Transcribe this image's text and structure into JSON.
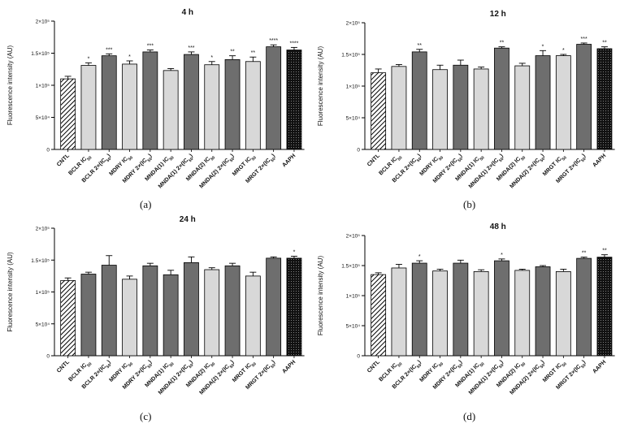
{
  "figure": {
    "panel_letters": [
      "(a)",
      "(b)",
      "(c)",
      "(d)"
    ]
  },
  "colors": {
    "control_pattern": "#000000",
    "light_bar": "#d8d8d8",
    "dark_bar": "#6e6e6e",
    "aaph_bar": "#111111",
    "axis": "#000000"
  },
  "chart_data": [
    {
      "type": "bar",
      "title": "4 h",
      "ylabel": "Fluorescence intensity (AU)",
      "xlabel": "",
      "ylim": [
        0,
        200000
      ],
      "yticks": [
        "0",
        "5×10⁴",
        "1×10⁵",
        "1.5×10⁵",
        "2×10⁵"
      ],
      "categories": [
        "CNTL",
        "BCLR IC50",
        "BCLR 2×(IC50)",
        "MDRY IC50",
        "MDRY 2×(IC50)",
        "MNDA(1) IC50",
        "MNDA(1) 2×(IC50)",
        "MNDA(2) IC50",
        "MNDA(2) 2×(IC50)",
        "MRGT IC50",
        "MRGT 2×(IC50)",
        "AAPH"
      ],
      "values": [
        110000,
        131000,
        146000,
        133000,
        152000,
        123000,
        148000,
        132000,
        140000,
        137000,
        160000,
        155000
      ],
      "errors": [
        4000,
        4000,
        3000,
        5000,
        3000,
        3000,
        4000,
        5000,
        6000,
        7000,
        3000,
        4000
      ],
      "significance": [
        "",
        "*",
        "***",
        "*",
        "***",
        "",
        "***",
        "*",
        "**",
        "**",
        "****",
        "****"
      ],
      "fills": [
        "hatch",
        "light",
        "dark",
        "light",
        "dark",
        "light",
        "dark",
        "light",
        "dark",
        "light",
        "dark",
        "aaph"
      ]
    },
    {
      "type": "bar",
      "title": "12 h",
      "ylabel": "Fluorescence intensity (AU)",
      "xlabel": "",
      "ylim": [
        0,
        200000
      ],
      "yticks": [
        "0",
        "5×10⁴",
        "1×10⁵",
        "1.5×10⁵",
        "2×10⁵"
      ],
      "categories": [
        "CNTL",
        "BCLR IC50",
        "BCLR 2×(IC50)",
        "MDRY IC50",
        "MDRY 2×(IC50)",
        "MNDA(1) IC50",
        "MNDA(1) 2×(IC50)",
        "MNDA(2) IC50",
        "MNDA(2) 2×(IC50)",
        "MRGT IC50",
        "MRGT 2×(IC50)",
        "AAPH"
      ],
      "values": [
        121000,
        131000,
        154000,
        126000,
        133000,
        127000,
        160000,
        132000,
        148000,
        148000,
        166000,
        159000
      ],
      "errors": [
        6000,
        3000,
        4000,
        7000,
        8000,
        3000,
        2000,
        4000,
        8000,
        2000,
        2000,
        3000
      ],
      "significance": [
        "",
        "",
        "**",
        "",
        "",
        "",
        "**",
        "",
        "*",
        "*",
        "***",
        "**"
      ],
      "fills": [
        "hatch",
        "light",
        "dark",
        "light",
        "dark",
        "light",
        "dark",
        "light",
        "dark",
        "light",
        "dark",
        "aaph"
      ]
    },
    {
      "type": "bar",
      "title": "24 h",
      "ylabel": "Fluorescence intensity (AU)",
      "xlabel": "",
      "ylim": [
        0,
        200000
      ],
      "yticks": [
        "0",
        "5×10⁴",
        "1×10⁵",
        "1.5×10⁵",
        "2×10⁵"
      ],
      "categories": [
        "CNTL",
        "BCLR IC50",
        "BCLR 2×(IC50)",
        "MDRY IC50",
        "MDRY 2×(IC50)",
        "MNDA(1) IC50",
        "MNDA(1) 2×(IC50)",
        "MNDA(2) IC50",
        "MNDA(2) 2×(IC50)",
        "MRGT IC50",
        "MRGT 2×(IC50)",
        "AAPH"
      ],
      "values": [
        118000,
        128000,
        142000,
        120000,
        141000,
        127000,
        146000,
        135000,
        141000,
        125000,
        153000,
        153000
      ],
      "errors": [
        4000,
        3000,
        15000,
        5000,
        4000,
        7000,
        9000,
        3000,
        4000,
        6000,
        2000,
        3000
      ],
      "significance": [
        "",
        "",
        "",
        "",
        "",
        "",
        "",
        "",
        "",
        "",
        "",
        "*"
      ],
      "fills": [
        "hatch",
        "dark",
        "dark",
        "light",
        "dark",
        "dark",
        "dark",
        "light",
        "dark",
        "light",
        "dark",
        "aaph"
      ]
    },
    {
      "type": "bar",
      "title": "48 h",
      "ylabel": "Fluorescence intensity (AU)",
      "xlabel": "",
      "ylim": [
        0,
        200000
      ],
      "yticks": [
        "0",
        "5×10⁴",
        "1×10⁵",
        "1.5×10⁵",
        "2×10⁵"
      ],
      "categories": [
        "CNTL",
        "BCLR IC50",
        "BCLR 2×(IC50)",
        "MDRY IC50",
        "MDRY 2×(IC50)",
        "MNDA(1) IC50",
        "MNDA(1) 2×(IC50)",
        "MNDA(2) IC50",
        "MNDA(2) 2×(IC50)",
        "MRGT IC50",
        "MRGT 2×(IC50)",
        "AAPH"
      ],
      "values": [
        135000,
        146000,
        154000,
        141000,
        154000,
        140000,
        158000,
        142000,
        148000,
        140000,
        162000,
        164000
      ],
      "errors": [
        3000,
        6000,
        4000,
        3000,
        5000,
        3000,
        3000,
        2000,
        2000,
        4000,
        2000,
        4000
      ],
      "significance": [
        "",
        "",
        "*",
        "",
        "",
        "",
        "*",
        "",
        "",
        "",
        "**",
        "**"
      ],
      "fills": [
        "hatch",
        "light",
        "dark",
        "light",
        "dark",
        "light",
        "dark",
        "light",
        "dark",
        "light",
        "dark",
        "aaph"
      ]
    }
  ]
}
